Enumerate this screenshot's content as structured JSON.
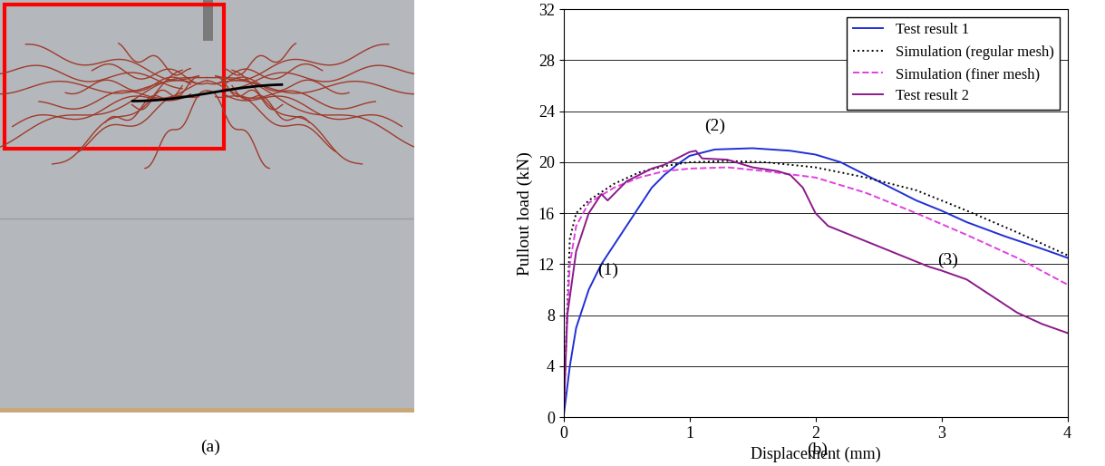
{
  "photo": {
    "label": "(a)"
  },
  "chart_data": {
    "type": "line",
    "label": "(b)",
    "x_label": "Displacement (mm)",
    "y_label": "Pullout load (kN)",
    "xlim": [
      0,
      4
    ],
    "xticks": [
      0,
      1,
      2,
      3,
      4
    ],
    "ylim": [
      0,
      32
    ],
    "yticks": [
      0,
      4,
      8,
      12,
      16,
      20,
      24,
      28,
      32
    ],
    "grid": "y",
    "legend": "upper right",
    "series": [
      {
        "name": "Test result 1",
        "color": "#1f2fd6",
        "line_style": "solid",
        "x": [
          0,
          0.05,
          0.1,
          0.2,
          0.3,
          0.4,
          0.5,
          0.6,
          0.7,
          0.8,
          0.9,
          1.0,
          1.2,
          1.5,
          1.8,
          2.0,
          2.2,
          2.4,
          2.6,
          2.8,
          3.0,
          3.2,
          3.5,
          3.8,
          4.0
        ],
        "values": [
          0,
          4,
          7,
          10,
          12,
          13.5,
          15,
          16.5,
          18,
          19,
          19.8,
          20.5,
          21,
          21.1,
          20.9,
          20.6,
          20,
          19,
          18,
          17,
          16.2,
          15.3,
          14.2,
          13.2,
          12.5
        ]
      },
      {
        "name": "Simulation (regular mesh)",
        "color": "#000000",
        "line_style": "dotted",
        "x": [
          0,
          0.02,
          0.05,
          0.1,
          0.2,
          0.4,
          0.6,
          0.8,
          1.0,
          1.3,
          1.6,
          2.0,
          2.4,
          2.8,
          3.2,
          3.6,
          4.0
        ],
        "values": [
          0,
          6,
          14,
          16,
          17,
          18.3,
          19.2,
          19.7,
          20,
          20.1,
          20,
          19.6,
          18.8,
          17.8,
          16.2,
          14.5,
          12.7
        ]
      },
      {
        "name": "Simulation (finer mesh)",
        "color": "#e040e0",
        "line_style": "dashed",
        "x": [
          0,
          0.02,
          0.05,
          0.1,
          0.2,
          0.4,
          0.6,
          0.8,
          1.0,
          1.3,
          1.6,
          2.0,
          2.4,
          2.8,
          3.2,
          3.6,
          4.0
        ],
        "values": [
          0,
          6,
          12,
          15,
          16.8,
          18,
          18.8,
          19.3,
          19.5,
          19.6,
          19.3,
          18.8,
          17.6,
          16,
          14.3,
          12.5,
          10.4
        ]
      },
      {
        "name": "Test result 2",
        "color": "#8b1a8b",
        "line_style": "solid",
        "x": [
          0,
          0.03,
          0.1,
          0.2,
          0.3,
          0.35,
          0.4,
          0.5,
          0.6,
          0.7,
          0.8,
          0.9,
          1.0,
          1.05,
          1.1,
          1.3,
          1.5,
          1.7,
          1.8,
          1.9,
          2.0,
          2.1,
          2.3,
          2.6,
          2.9,
          3.0,
          3.2,
          3.4,
          3.6,
          3.8,
          4.0
        ],
        "values": [
          0,
          8,
          13,
          16,
          17.5,
          17,
          17.5,
          18.5,
          19,
          19.5,
          19.8,
          20.3,
          20.8,
          20.9,
          20.3,
          20.2,
          19.6,
          19.3,
          19,
          18,
          16,
          15,
          14.2,
          13,
          11.8,
          11.5,
          10.8,
          9.5,
          8.2,
          7.3,
          6.6
        ]
      }
    ],
    "annotations": [
      {
        "text": "(1)",
        "x": 0.35,
        "y": 11.5
      },
      {
        "text": "(2)",
        "x": 1.2,
        "y": 22.8
      },
      {
        "text": "(3)",
        "x": 3.05,
        "y": 12.3
      }
    ]
  }
}
